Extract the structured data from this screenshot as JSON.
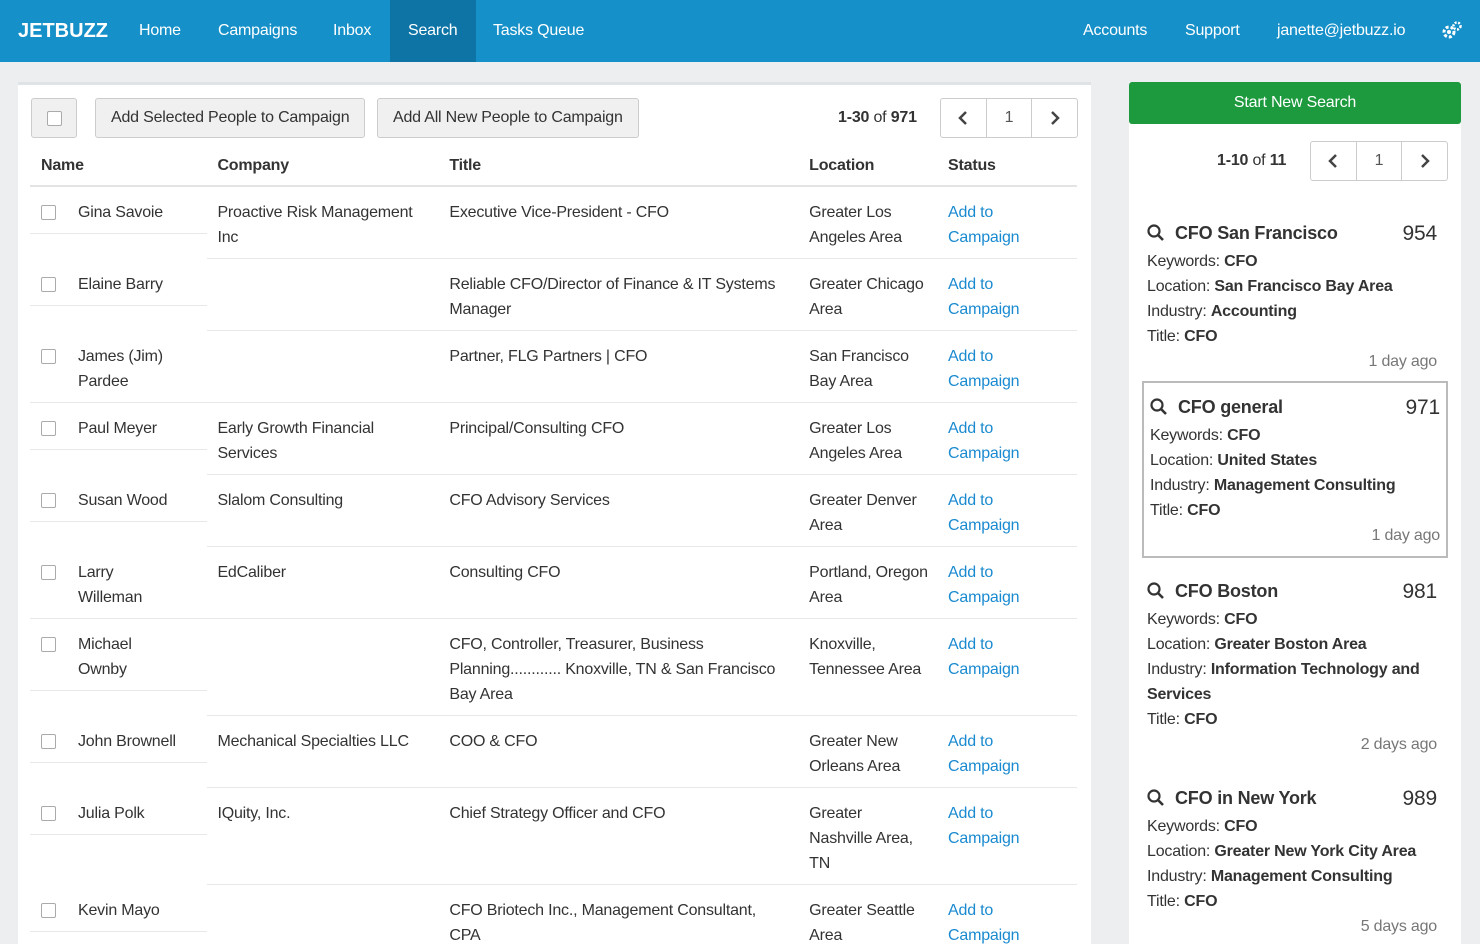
{
  "nav": {
    "brand": "JETBUZZ",
    "items": [
      "Home",
      "Campaigns",
      "Inbox",
      "Search",
      "Tasks Queue"
    ],
    "active_index": 3,
    "right_items": [
      "Accounts",
      "Support",
      "janette@jetbuzz.io"
    ]
  },
  "toolbar": {
    "buttons": [
      "Add Selected People to Campaign",
      "Add All New People to Campaign"
    ],
    "range": "1-30",
    "of": "of",
    "total": 971,
    "page": 1
  },
  "table": {
    "headers": [
      "Name",
      "Company",
      "Title",
      "Location",
      "Status"
    ],
    "rows": [
      {
        "name": "Gina Savoie",
        "company": "Proactive Risk Management Inc",
        "title": "Executive Vice-President - CFO",
        "location": "Greater Los Angeles Area",
        "status": "Add to Campaign"
      },
      {
        "name": "Elaine Barry",
        "company": null,
        "title": "Reliable CFO/Director of Finance & IT Systems Manager",
        "location": "Greater Chicago Area",
        "status": "Add to Campaign"
      },
      {
        "name": "James (Jim) Pardee",
        "company": null,
        "title": "Partner, FLG Partners | CFO",
        "location": "San Francisco Bay Area",
        "status": "Add to Campaign"
      },
      {
        "name": "Paul Meyer",
        "company": "Early Growth Financial Services",
        "title": "Principal/Consulting CFO",
        "location": "Greater Los Angeles Area",
        "status": "Add to Campaign"
      },
      {
        "name": "Susan Wood",
        "company": "Slalom Consulting",
        "title": "CFO Advisory Services",
        "location": "Greater Denver Area",
        "status": "Add to Campaign"
      },
      {
        "name": "Larry Willeman",
        "company": "EdCaliber",
        "title": "Consulting CFO",
        "location": "Portland, Oregon Area",
        "status": "Add to Campaign"
      },
      {
        "name": "Michael Ownby",
        "company": null,
        "title": "CFO, Controller, Treasurer, Business Planning............ Knoxville, TN & San Francisco Bay Area",
        "location": "Knoxville, Tennessee Area",
        "status": "Add to Campaign"
      },
      {
        "name": "John Brownell",
        "company": "Mechanical Specialties LLC",
        "title": "COO & CFO",
        "location": "Greater New Orleans Area",
        "status": "Add to Campaign"
      },
      {
        "name": "Julia Polk",
        "company": "IQuity, Inc.",
        "title": "Chief Strategy Officer and CFO",
        "location": "Greater Nashville Area, TN",
        "status": "Add to Campaign"
      },
      {
        "name": "Kevin Mayo",
        "company": null,
        "title": "CFO Briotech Inc., Management Consultant, CPA",
        "location": "Greater Seattle Area",
        "status": "Add to Campaign"
      }
    ]
  },
  "sidebar": {
    "button": "Start New Search",
    "range": "1-10",
    "of": "of",
    "total": 11,
    "page": 1,
    "selected_index": 1,
    "searches": [
      {
        "name": "CFO San Francisco",
        "count": 954,
        "fields": [
          {
            "label": "Keywords:",
            "value": "CFO"
          },
          {
            "label": "Location:",
            "value": "San Francisco Bay Area"
          },
          {
            "label": "Industry:",
            "value": "Accounting"
          },
          {
            "label": "Title:",
            "value": "CFO"
          }
        ],
        "time": "1 day ago"
      },
      {
        "name": "CFO general",
        "count": 971,
        "fields": [
          {
            "label": "Keywords:",
            "value": "CFO"
          },
          {
            "label": "Location:",
            "value": "United States"
          },
          {
            "label": "Industry:",
            "value": "Management Consulting"
          },
          {
            "label": "Title:",
            "value": "CFO"
          }
        ],
        "time": "1 day ago"
      },
      {
        "name": "CFO Boston",
        "count": 981,
        "fields": [
          {
            "label": "Keywords:",
            "value": "CFO"
          },
          {
            "label": "Location:",
            "value": "Greater Boston Area"
          },
          {
            "label": "Industry:",
            "value": "Information Technology and Services"
          },
          {
            "label": "Title:",
            "value": "CFO"
          }
        ],
        "time": "2 days ago"
      },
      {
        "name": "CFO in New York",
        "count": 989,
        "fields": [
          {
            "label": "Keywords:",
            "value": "CFO"
          },
          {
            "label": "Location:",
            "value": "Greater New York City Area"
          },
          {
            "label": "Industry:",
            "value": "Management Consulting"
          },
          {
            "label": "Title:",
            "value": "CFO"
          }
        ],
        "time": "5 days ago"
      }
    ]
  }
}
